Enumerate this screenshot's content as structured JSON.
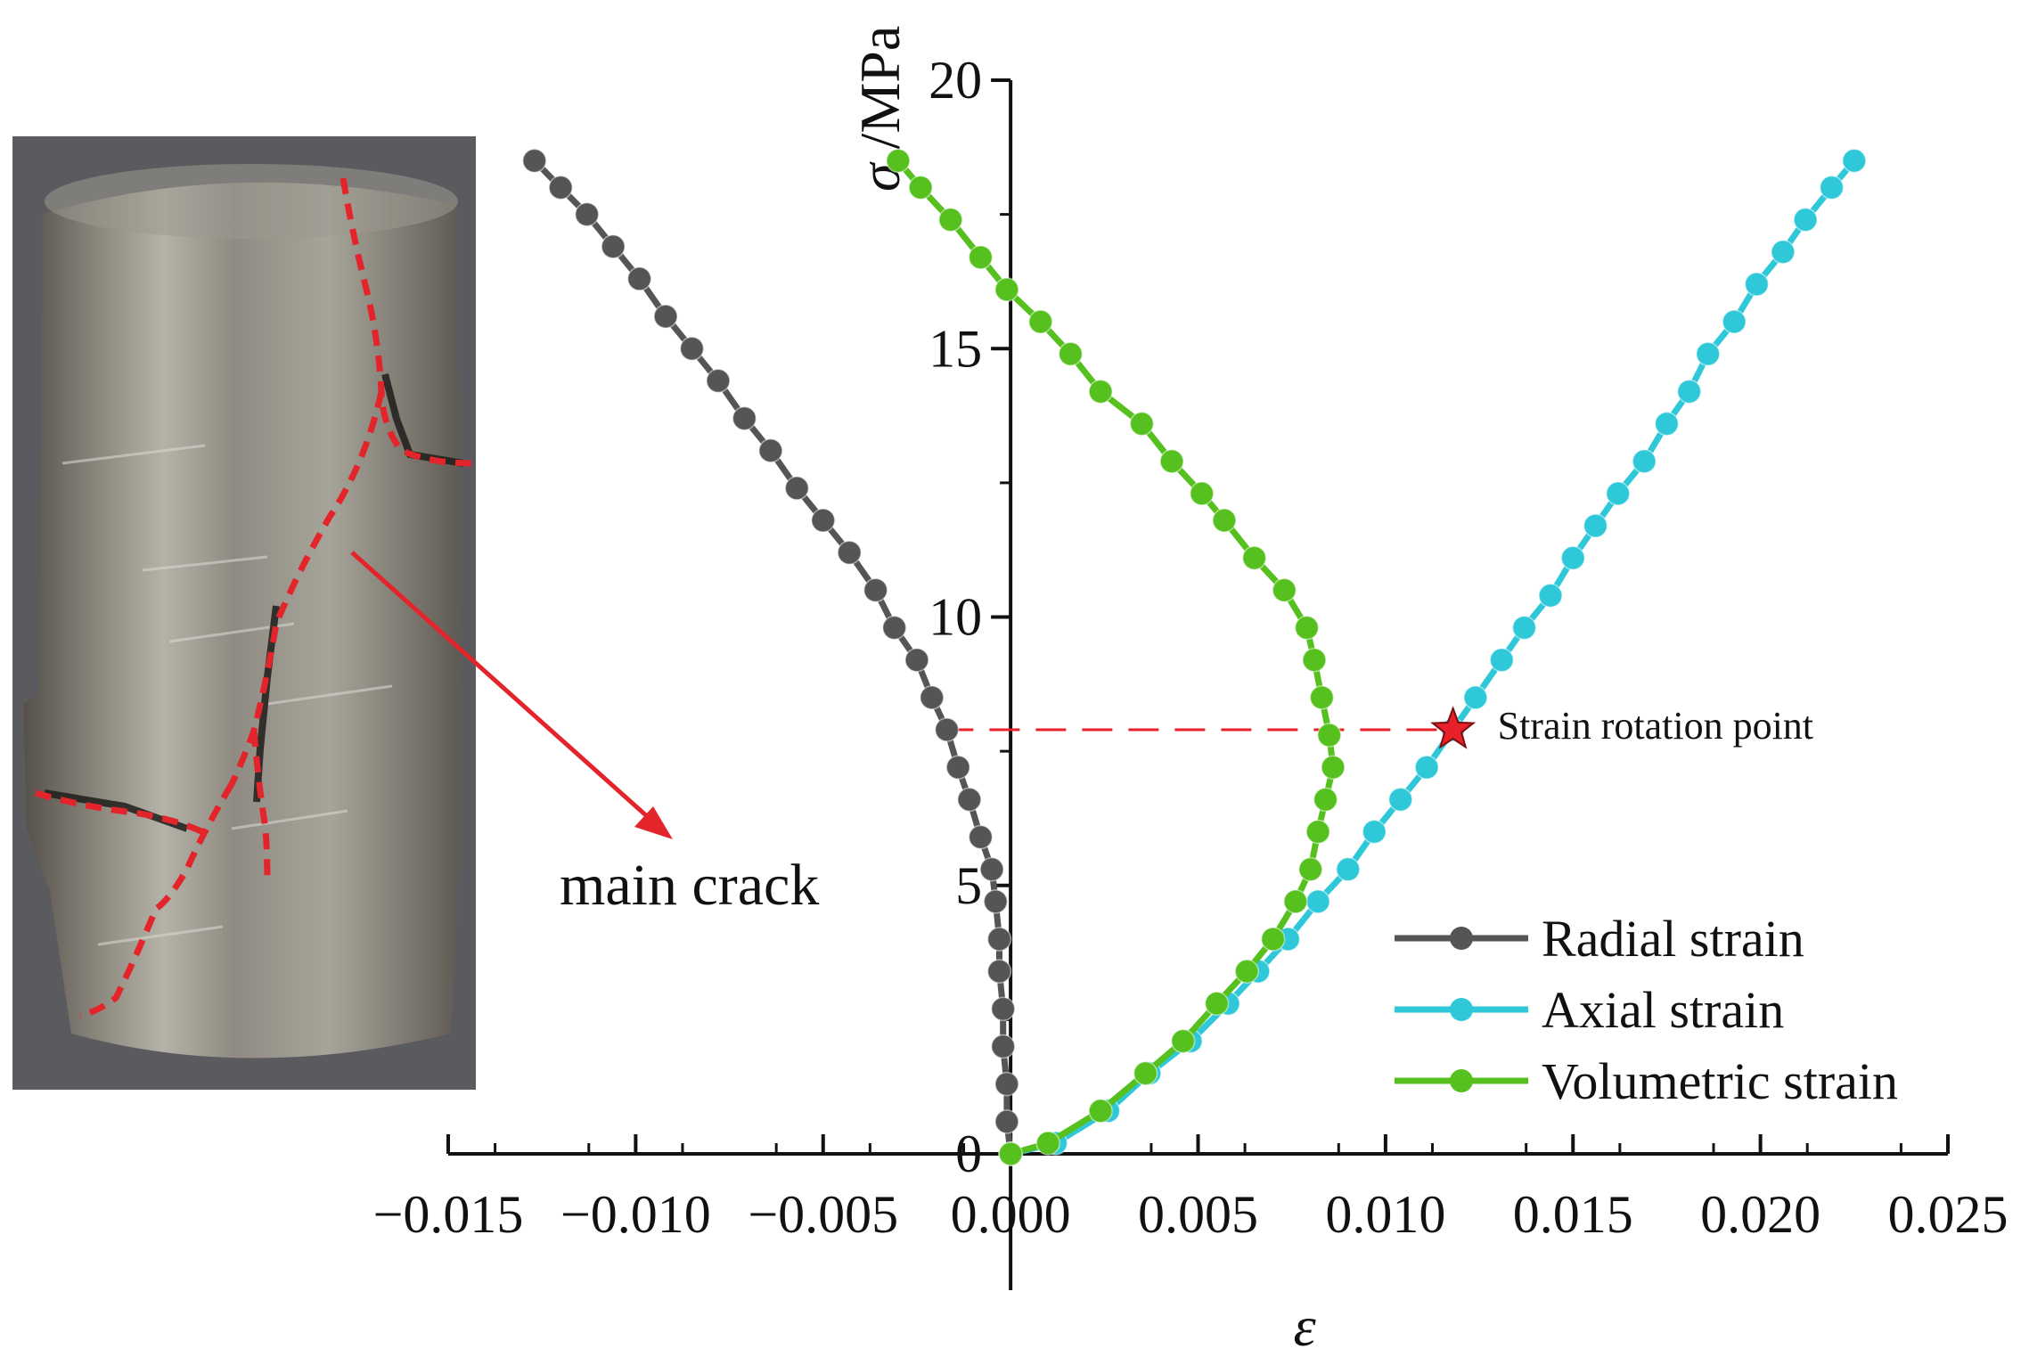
{
  "photo_annotation": {
    "label": "main crack"
  },
  "chart_data": {
    "type": "line",
    "xlabel": "ε",
    "ylabel": {
      "symbol": "σ",
      "unit": " /MPa"
    },
    "xlim": [
      -0.015,
      0.025
    ],
    "ylim": [
      0,
      20
    ],
    "x_ticks": [
      -0.015,
      -0.01,
      -0.005,
      0.0,
      0.005,
      0.01,
      0.015,
      0.02,
      0.025
    ],
    "x_tick_labels": [
      "−0.015",
      "−0.010",
      "−0.005",
      "0.000",
      "0.005",
      "0.010",
      "0.015",
      "0.020",
      "0.025"
    ],
    "y_ticks": [
      0,
      5,
      10,
      15,
      20
    ],
    "y_tick_labels": [
      "0",
      "5",
      "10",
      "15",
      "20"
    ],
    "grid": false,
    "legend_position": "bottom-right",
    "series": [
      {
        "name": "Radial strain",
        "color": "#555555",
        "points": [
          [
            0.0,
            0.0
          ],
          [
            -0.0001,
            0.6
          ],
          [
            -0.0001,
            1.3
          ],
          [
            -0.0002,
            2.0
          ],
          [
            -0.0002,
            2.7
          ],
          [
            -0.0003,
            3.4
          ],
          [
            -0.0003,
            4.0
          ],
          [
            -0.0004,
            4.7
          ],
          [
            -0.0005,
            5.3
          ],
          [
            -0.0008,
            5.9
          ],
          [
            -0.0011,
            6.6
          ],
          [
            -0.0014,
            7.2
          ],
          [
            -0.0017,
            7.9
          ],
          [
            -0.0021,
            8.5
          ],
          [
            -0.0025,
            9.2
          ],
          [
            -0.0031,
            9.8
          ],
          [
            -0.0036,
            10.5
          ],
          [
            -0.0043,
            11.2
          ],
          [
            -0.005,
            11.8
          ],
          [
            -0.0057,
            12.4
          ],
          [
            -0.0064,
            13.1
          ],
          [
            -0.0071,
            13.7
          ],
          [
            -0.0078,
            14.4
          ],
          [
            -0.0085,
            15.0
          ],
          [
            -0.0092,
            15.6
          ],
          [
            -0.0099,
            16.3
          ],
          [
            -0.0106,
            16.9
          ],
          [
            -0.0113,
            17.5
          ],
          [
            -0.012,
            18.0
          ],
          [
            -0.0127,
            18.5
          ]
        ]
      },
      {
        "name": "Axial strain",
        "color": "#2EC8D8",
        "points": [
          [
            0.0,
            0.0
          ],
          [
            0.0012,
            0.2
          ],
          [
            0.0026,
            0.8
          ],
          [
            0.0037,
            1.5
          ],
          [
            0.0048,
            2.1
          ],
          [
            0.0058,
            2.8
          ],
          [
            0.0066,
            3.4
          ],
          [
            0.0074,
            4.0
          ],
          [
            0.0082,
            4.7
          ],
          [
            0.009,
            5.3
          ],
          [
            0.0097,
            6.0
          ],
          [
            0.0104,
            6.6
          ],
          [
            0.0111,
            7.2
          ],
          [
            0.0118,
            7.9
          ],
          [
            0.0124,
            8.5
          ],
          [
            0.0131,
            9.2
          ],
          [
            0.0137,
            9.8
          ],
          [
            0.0144,
            10.4
          ],
          [
            0.015,
            11.1
          ],
          [
            0.0156,
            11.7
          ],
          [
            0.0162,
            12.3
          ],
          [
            0.0169,
            12.9
          ],
          [
            0.0175,
            13.6
          ],
          [
            0.0181,
            14.2
          ],
          [
            0.0186,
            14.9
          ],
          [
            0.0193,
            15.5
          ],
          [
            0.0199,
            16.2
          ],
          [
            0.0206,
            16.8
          ],
          [
            0.0212,
            17.4
          ],
          [
            0.0219,
            18.0
          ],
          [
            0.0225,
            18.5
          ]
        ]
      },
      {
        "name": "Volumetric strain",
        "color": "#55C01E",
        "points": [
          [
            0.0,
            0.0
          ],
          [
            0.001,
            0.2
          ],
          [
            0.0024,
            0.8
          ],
          [
            0.0036,
            1.5
          ],
          [
            0.0046,
            2.1
          ],
          [
            0.0055,
            2.8
          ],
          [
            0.0063,
            3.4
          ],
          [
            0.007,
            4.0
          ],
          [
            0.0076,
            4.7
          ],
          [
            0.008,
            5.3
          ],
          [
            0.0082,
            6.0
          ],
          [
            0.0084,
            6.6
          ],
          [
            0.0086,
            7.2
          ],
          [
            0.0085,
            7.8
          ],
          [
            0.0083,
            8.5
          ],
          [
            0.0081,
            9.2
          ],
          [
            0.0079,
            9.8
          ],
          [
            0.0073,
            10.5
          ],
          [
            0.0065,
            11.1
          ],
          [
            0.0057,
            11.8
          ],
          [
            0.0051,
            12.3
          ],
          [
            0.0043,
            12.9
          ],
          [
            0.0035,
            13.6
          ],
          [
            0.0024,
            14.2
          ],
          [
            0.0016,
            14.9
          ],
          [
            0.0008,
            15.5
          ],
          [
            -0.0001,
            16.1
          ],
          [
            -0.0008,
            16.7
          ],
          [
            -0.0016,
            17.4
          ],
          [
            -0.0024,
            18.0
          ],
          [
            -0.003,
            18.5
          ]
        ]
      }
    ],
    "annotation": {
      "label": "Strain rotation point",
      "x": 0.0118,
      "y": 7.9,
      "line_from_x": -0.0018,
      "line_color": "#E8202A",
      "marker_color": "#E8202A"
    }
  }
}
